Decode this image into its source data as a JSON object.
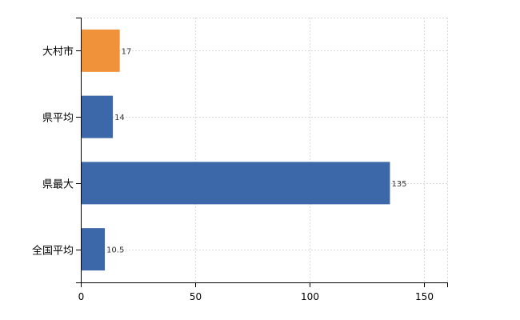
{
  "chart_data": {
    "type": "bar",
    "orientation": "horizontal",
    "categories": [
      "大村市",
      "県平均",
      "県最大",
      "全国平均"
    ],
    "values": [
      17,
      14,
      135,
      10.5
    ],
    "data_labels": [
      "17",
      "14",
      "135",
      "10.5"
    ],
    "bar_colors": [
      "#f0923a",
      "#3c67a8",
      "#3c67a8",
      "#3c67a8"
    ],
    "xlim": [
      0,
      160
    ],
    "x_ticks": [
      0,
      50,
      100,
      150
    ],
    "x_tick_labels": [
      "0",
      "50",
      "100",
      "150"
    ],
    "grid": true,
    "legend": "none"
  }
}
